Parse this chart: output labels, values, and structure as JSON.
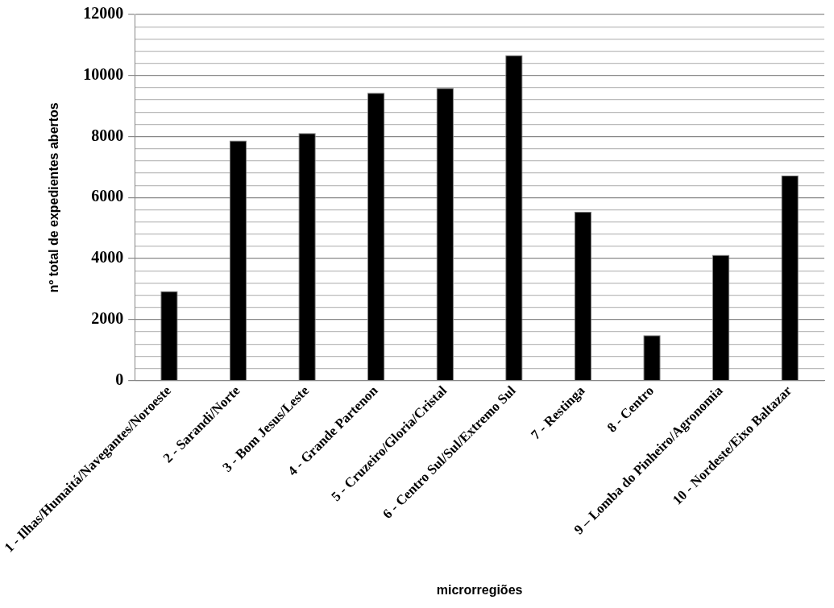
{
  "chart_data": {
    "type": "bar",
    "xlabel": "microrregiões",
    "ylabel": "nº total de expedientes abertos",
    "categories": [
      "1 - Ilhas/Humaitá/Navegantes/Noroeste",
      "2 - Sarandi/Norte",
      "3 - Bom Jesus/Leste",
      "4 - Grande Partenon",
      "5 - Cruzeiro/Gloria/Cristal",
      "6 - Centro Sul/Sul/Extremo Sul",
      "7 - Restinga",
      "8 - Centro",
      "9 – Lomba do Pinheiro/Agronomia",
      "10 - Nordeste/Eixo Baltazar"
    ],
    "values": [
      2930,
      7870,
      8110,
      9430,
      9590,
      10670,
      5530,
      1490,
      4120,
      6720
    ],
    "color": "#000000",
    "ylim": [
      0,
      12000
    ],
    "yticks": [
      0,
      {
        "value": 400,
        "label": null
      },
      {
        "value": 800,
        "label": null
      },
      {
        "value": 1200,
        "label": null
      },
      {
        "value": 1600,
        "label": null
      },
      2000,
      {
        "value": 2400,
        "label": null
      },
      {
        "value": 2800,
        "label": null
      },
      {
        "value": 3200,
        "label": null
      },
      {
        "value": 3600,
        "label": null
      },
      4000,
      {
        "value": 4400,
        "label": null
      },
      {
        "value": 4800,
        "label": null
      },
      {
        "value": 5200,
        "label": null
      },
      {
        "value": 5600,
        "label": null
      },
      6000,
      {
        "value": 6400,
        "label": null
      },
      {
        "value": 6800,
        "label": null
      },
      {
        "value": 7200,
        "label": null
      },
      {
        "value": 7600,
        "label": null
      },
      8000,
      {
        "value": 8400,
        "label": null
      },
      {
        "value": 8800,
        "label": null
      },
      {
        "value": 9200,
        "label": null
      },
      {
        "value": 9600,
        "label": null
      },
      10000,
      {
        "value": 10400,
        "label": null
      },
      {
        "value": 10800,
        "label": null
      },
      {
        "value": 11200,
        "label": null
      },
      {
        "value": 11600,
        "label": null
      },
      12000
    ],
    "grid": "y",
    "legend": false
  }
}
